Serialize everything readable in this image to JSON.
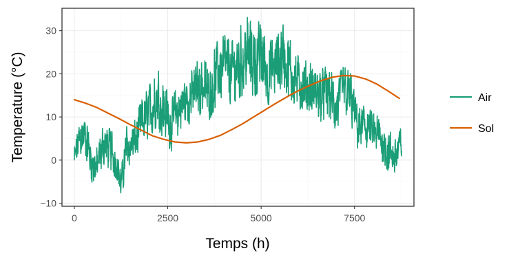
{
  "chart_data": {
    "type": "line",
    "xlabel": "Temps (h)",
    "ylabel": "Temperature (°C)",
    "xlim": [
      -330,
      9090
    ],
    "ylim": [
      -10.7,
      35.2
    ],
    "x_ticks": [
      0,
      2500,
      5000,
      7500
    ],
    "x_tick_labels": [
      "0",
      "2500",
      "5000",
      "7500"
    ],
    "y_ticks": [
      -10,
      0,
      10,
      20,
      30
    ],
    "y_tick_labels": [
      "−10",
      "0",
      "10",
      "20",
      "30"
    ],
    "grid": true,
    "legend_position": "right",
    "series": [
      {
        "name": "Air",
        "color": "#1b9e77",
        "x": [
          0,
          150,
          300,
          450,
          600,
          800,
          1000,
          1150,
          1250,
          1400,
          1600,
          1800,
          2000,
          2200,
          2400,
          2600,
          2800,
          3000,
          3200,
          3400,
          3600,
          3800,
          4000,
          4200,
          4400,
          4600,
          4800,
          5000,
          5200,
          5400,
          5600,
          5800,
          6000,
          6200,
          6400,
          6600,
          6800,
          7000,
          7200,
          7400,
          7600,
          7800,
          8000,
          8200,
          8400,
          8600,
          8760
        ],
        "y": [
          0,
          5,
          6,
          0,
          -2,
          4,
          2,
          -1,
          -6,
          3,
          4,
          8,
          11,
          15,
          12,
          8,
          12,
          14,
          15,
          18,
          15,
          20,
          22,
          20,
          22,
          25,
          23,
          24,
          20,
          22,
          25,
          20,
          18,
          17,
          16,
          15,
          16,
          12,
          16,
          14,
          7,
          8,
          6,
          5,
          2,
          1,
          4
        ],
        "band": [
          3,
          4,
          4,
          4,
          4,
          4,
          4,
          3,
          3,
          4,
          4,
          5,
          5,
          6,
          6,
          5,
          5,
          5,
          5,
          6,
          5,
          6,
          6,
          6,
          7,
          7,
          7,
          7,
          6,
          6,
          7,
          6,
          5,
          5,
          5,
          5,
          5,
          5,
          5,
          5,
          4,
          4,
          4,
          4,
          4,
          4,
          3
        ]
      },
      {
        "name": "Sol",
        "color": "#d95f02",
        "x": [
          0,
          300,
          600,
          900,
          1200,
          1500,
          1800,
          2100,
          2400,
          2700,
          3000,
          3300,
          3600,
          3900,
          4200,
          4500,
          4800,
          5100,
          5400,
          5700,
          6000,
          6300,
          6600,
          6900,
          7200,
          7500,
          7800,
          8100,
          8400,
          8700
        ],
        "y": [
          14.0,
          13.2,
          12.2,
          10.9,
          9.6,
          8.2,
          6.9,
          5.6,
          4.8,
          4.2,
          4.0,
          4.2,
          4.8,
          5.7,
          7.0,
          8.4,
          10.0,
          11.6,
          13.2,
          14.7,
          16.1,
          17.3,
          18.4,
          19.2,
          19.6,
          19.5,
          18.8,
          17.6,
          16.0,
          14.3
        ]
      }
    ]
  }
}
